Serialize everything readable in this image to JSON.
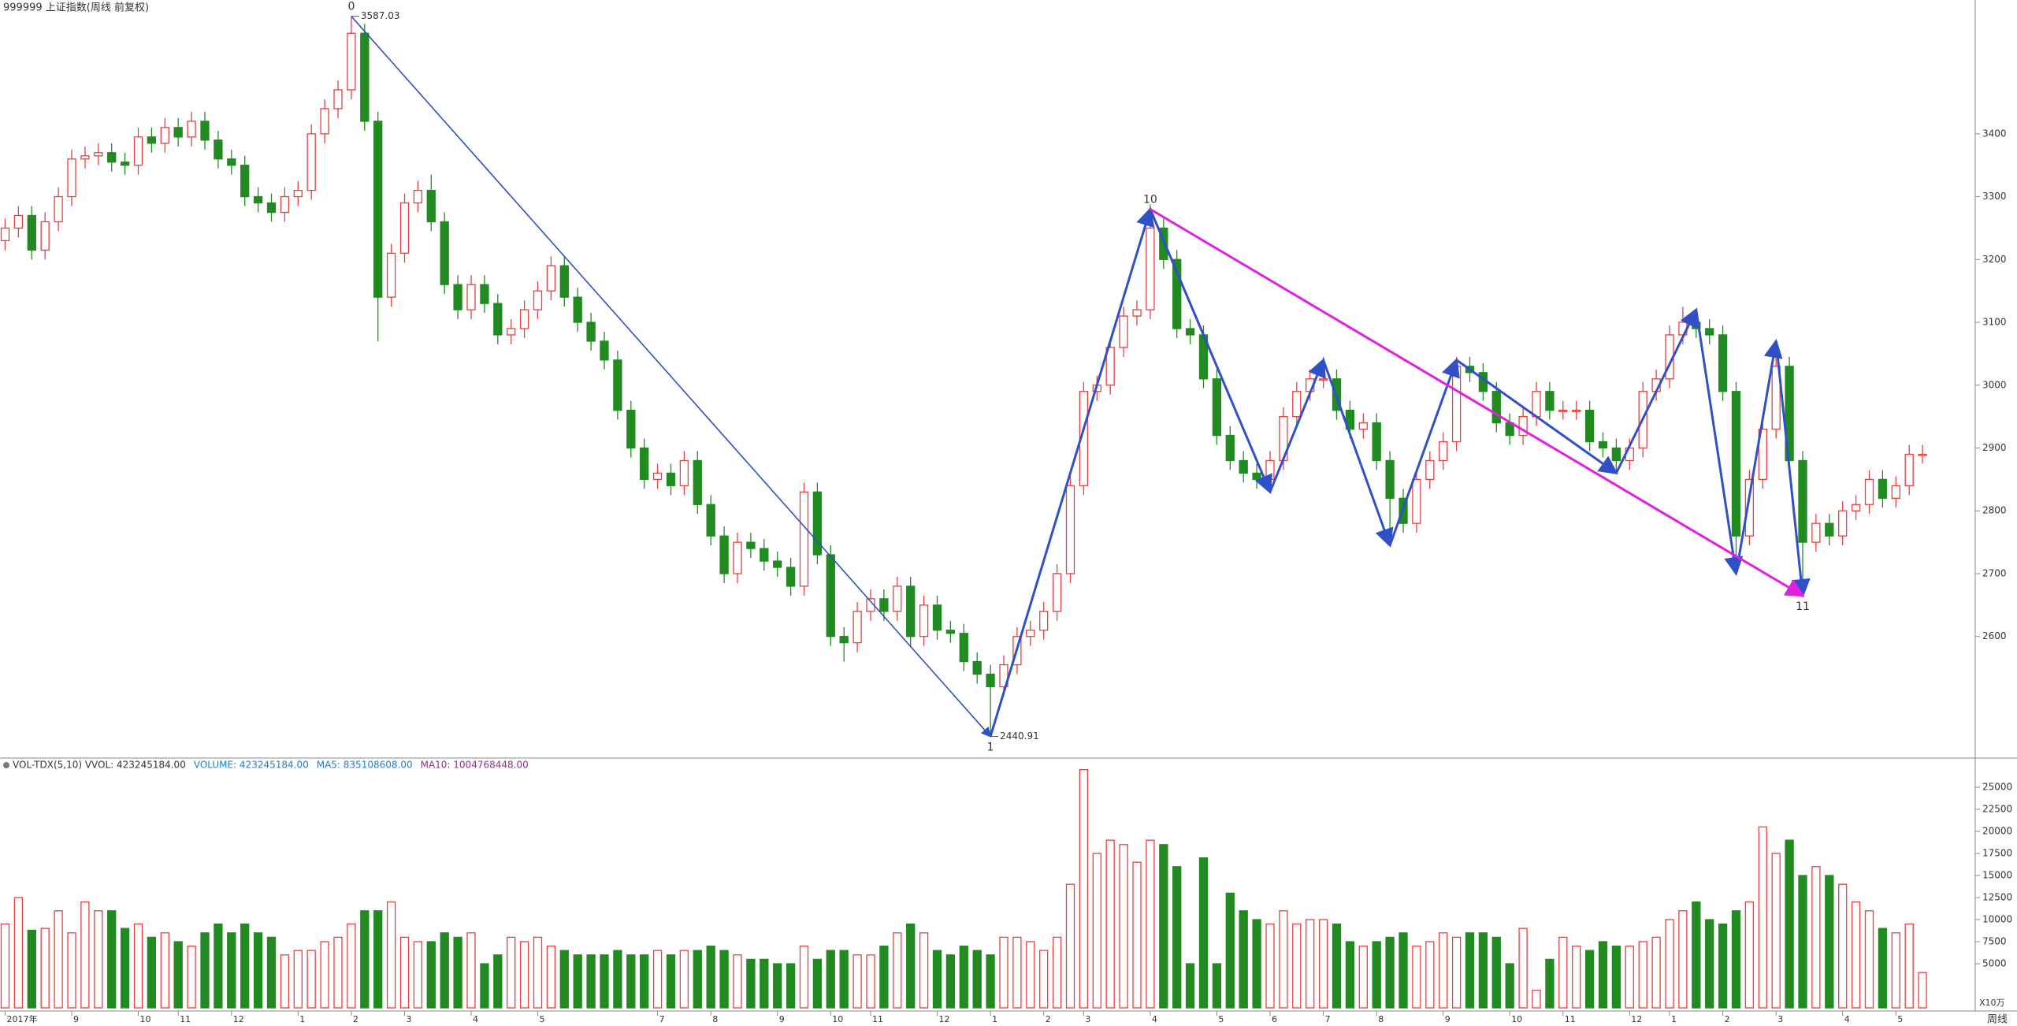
{
  "chart_data": [
    {
      "type": "candlestick",
      "title": "999999 上证指数(周线 前复权)",
      "period_label": "周线",
      "up_color": "#e8403f",
      "down_color": "#218a21",
      "open": [
        3230,
        3250,
        3270,
        3215,
        3260,
        3300,
        3360,
        3365,
        3370,
        3355,
        3350,
        3395,
        3385,
        3410,
        3395,
        3420,
        3390,
        3360,
        3350,
        3300,
        3290,
        3275,
        3300,
        3310,
        3400,
        3440,
        3470,
        3560,
        3420,
        3140,
        3210,
        3290,
        3310,
        3260,
        3160,
        3120,
        3160,
        3130,
        3080,
        3090,
        3120,
        3150,
        3190,
        3140,
        3100,
        3070,
        3040,
        2960,
        2900,
        2850,
        2860,
        2840,
        2880,
        2810,
        2760,
        2700,
        2750,
        2740,
        2720,
        2710,
        2680,
        2830,
        2730,
        2600,
        2590,
        2640,
        2660,
        2640,
        2680,
        2600,
        2650,
        2610,
        2605,
        2560,
        2540,
        2520,
        2555,
        2600,
        2610,
        2640,
        2700,
        2840,
        2990,
        3000,
        3060,
        3110,
        3120,
        3250,
        3200,
        3090,
        3080,
        3010,
        2920,
        2880,
        2860,
        2850,
        2880,
        2950,
        2990,
        3010,
        3010,
        2960,
        2930,
        2940,
        2880,
        2820,
        2780,
        2850,
        2880,
        2910,
        3030,
        3020,
        2990,
        2940,
        2920,
        2950,
        2990,
        2960,
        2960,
        2960,
        2910,
        2900,
        2880,
        2900,
        2990,
        3010,
        3080,
        3100,
        3090,
        3080,
        2990,
        2760,
        2850,
        2930,
        3030,
        2880,
        2750,
        2780,
        2760,
        2800,
        2810,
        2850,
        2820,
        2840,
        2890
      ],
      "high": [
        3265,
        3285,
        3285,
        3275,
        3315,
        3375,
        3380,
        3385,
        3385,
        3370,
        3410,
        3410,
        3425,
        3425,
        3435,
        3435,
        3405,
        3375,
        3365,
        3315,
        3305,
        3315,
        3325,
        3415,
        3455,
        3485,
        3587.03,
        3575,
        3435,
        3225,
        3305,
        3325,
        3335,
        3275,
        3175,
        3175,
        3175,
        3145,
        3105,
        3135,
        3165,
        3205,
        3205,
        3155,
        3115,
        3085,
        3055,
        2975,
        2915,
        2875,
        2875,
        2895,
        2895,
        2825,
        2775,
        2765,
        2765,
        2755,
        2735,
        2725,
        2845,
        2845,
        2745,
        2615,
        2655,
        2675,
        2675,
        2695,
        2695,
        2665,
        2665,
        2625,
        2620,
        2575,
        2555,
        2570,
        2615,
        2625,
        2655,
        2715,
        2855,
        3005,
        3015,
        3075,
        3125,
        3135,
        3288,
        3265,
        3215,
        3105,
        3095,
        3025,
        2935,
        2895,
        2875,
        2895,
        2965,
        3005,
        3025,
        3045,
        3025,
        2975,
        2955,
        2955,
        2895,
        2835,
        2865,
        2895,
        2925,
        3045,
        3045,
        3035,
        3005,
        2955,
        2965,
        3005,
        3005,
        2975,
        2975,
        2975,
        2925,
        2915,
        2915,
        3005,
        3025,
        3095,
        3125,
        3115,
        3105,
        3095,
        3005,
        2865,
        2945,
        3070,
        3045,
        2895,
        2795,
        2795,
        2815,
        2825,
        2865,
        2865,
        2855,
        2905,
        2905
      ],
      "low": [
        3215,
        3235,
        3200,
        3200,
        3245,
        3285,
        3345,
        3350,
        3340,
        3335,
        3335,
        3370,
        3370,
        3380,
        3380,
        3375,
        3345,
        3335,
        3285,
        3275,
        3260,
        3260,
        3285,
        3295,
        3385,
        3425,
        3455,
        3405,
        3070,
        3125,
        3195,
        3275,
        3245,
        3145,
        3105,
        3105,
        3115,
        3065,
        3065,
        3075,
        3105,
        3135,
        3125,
        3085,
        3055,
        3025,
        2945,
        2885,
        2835,
        2835,
        2825,
        2825,
        2795,
        2745,
        2685,
        2685,
        2725,
        2705,
        2695,
        2665,
        2665,
        2715,
        2585,
        2560,
        2575,
        2625,
        2625,
        2625,
        2585,
        2585,
        2595,
        2590,
        2545,
        2525,
        2440.91,
        2505,
        2540,
        2585,
        2595,
        2625,
        2685,
        2825,
        2975,
        2985,
        3045,
        3095,
        3105,
        3185,
        3075,
        3065,
        2995,
        2905,
        2865,
        2845,
        2835,
        2830,
        2865,
        2935,
        2975,
        2995,
        2945,
        2915,
        2915,
        2865,
        2745,
        2765,
        2765,
        2835,
        2865,
        2895,
        3005,
        2975,
        2925,
        2905,
        2905,
        2935,
        2945,
        2945,
        2945,
        2895,
        2885,
        2860,
        2865,
        2885,
        2975,
        2995,
        3065,
        3075,
        3065,
        2975,
        2700,
        2745,
        2835,
        2915,
        2865,
        2665,
        2735,
        2745,
        2745,
        2785,
        2795,
        2805,
        2805,
        2825,
        2875
      ],
      "close": [
        3250,
        3270,
        3215,
        3260,
        3300,
        3360,
        3365,
        3370,
        3355,
        3350,
        3395,
        3385,
        3410,
        3395,
        3420,
        3390,
        3360,
        3350,
        3300,
        3290,
        3275,
        3300,
        3310,
        3400,
        3440,
        3470,
        3560,
        3420,
        3140,
        3210,
        3290,
        3310,
        3260,
        3160,
        3120,
        3160,
        3130,
        3080,
        3090,
        3120,
        3150,
        3190,
        3140,
        3100,
        3070,
        3040,
        2960,
        2900,
        2850,
        2860,
        2840,
        2880,
        2810,
        2760,
        2700,
        2750,
        2740,
        2720,
        2710,
        2680,
        2830,
        2730,
        2600,
        2590,
        2640,
        2660,
        2640,
        2680,
        2600,
        2650,
        2610,
        2605,
        2560,
        2540,
        2520,
        2555,
        2600,
        2610,
        2640,
        2700,
        2840,
        2990,
        3000,
        3060,
        3110,
        3120,
        3250,
        3200,
        3090,
        3080,
        3010,
        2920,
        2880,
        2860,
        2850,
        2880,
        2950,
        2990,
        3010,
        3010,
        2960,
        2930,
        2940,
        2880,
        2820,
        2780,
        2850,
        2880,
        2910,
        3030,
        3020,
        2990,
        2940,
        2920,
        2950,
        2990,
        2960,
        2960,
        2960,
        2910,
        2900,
        2880,
        2900,
        2990,
        3010,
        3080,
        3100,
        3090,
        3080,
        2990,
        2760,
        2850,
        2930,
        3030,
        2880,
        2750,
        2780,
        2760,
        2800,
        2810,
        2850,
        2820,
        2840,
        2890,
        2890
      ],
      "ylim": [
        2409,
        3613
      ],
      "yticks": [
        2600,
        2700,
        2800,
        2900,
        3000,
        3100,
        3200,
        3300,
        3400
      ],
      "x_labels": [
        {
          "index": 0,
          "label": "2017年"
        },
        {
          "index": 5,
          "label": "9"
        },
        {
          "index": 10,
          "label": "10"
        },
        {
          "index": 13,
          "label": "11"
        },
        {
          "index": 17,
          "label": "12"
        },
        {
          "index": 22,
          "label": "1"
        },
        {
          "index": 26,
          "label": "2"
        },
        {
          "index": 30,
          "label": "3"
        },
        {
          "index": 35,
          "label": "4"
        },
        {
          "index": 40,
          "label": "5"
        },
        {
          "index": 49,
          "label": "7"
        },
        {
          "index": 53,
          "label": "8"
        },
        {
          "index": 58,
          "label": "9"
        },
        {
          "index": 62,
          "label": "10"
        },
        {
          "index": 65,
          "label": "11"
        },
        {
          "index": 70,
          "label": "12"
        },
        {
          "index": 74,
          "label": "1"
        },
        {
          "index": 78,
          "label": "2"
        },
        {
          "index": 81,
          "label": "3"
        },
        {
          "index": 86,
          "label": "4"
        },
        {
          "index": 91,
          "label": "5"
        },
        {
          "index": 95,
          "label": "6"
        },
        {
          "index": 99,
          "label": "7"
        },
        {
          "index": 103,
          "label": "8"
        },
        {
          "index": 108,
          "label": "9"
        },
        {
          "index": 113,
          "label": "10"
        },
        {
          "index": 117,
          "label": "11"
        },
        {
          "index": 122,
          "label": "12"
        },
        {
          "index": 125,
          "label": "1"
        },
        {
          "index": 129,
          "label": "2"
        },
        {
          "index": 133,
          "label": "3"
        },
        {
          "index": 138,
          "label": "4"
        },
        {
          "index": 142,
          "label": "5"
        }
      ],
      "wave_color": "#3050c8",
      "wave": [
        {
          "i": 26,
          "price": 3587.03,
          "label": "0"
        },
        {
          "i": 74,
          "price": 2440.91,
          "label": "1"
        },
        {
          "i": 86,
          "price": 3280,
          "label": "10"
        },
        {
          "i": 95,
          "price": 2830
        },
        {
          "i": 99,
          "price": 3040
        },
        {
          "i": 104,
          "price": 2745
        },
        {
          "i": 109,
          "price": 3040
        },
        {
          "i": 121,
          "price": 2860
        },
        {
          "i": 127,
          "price": 3120
        },
        {
          "i": 130,
          "price": 2700
        },
        {
          "i": 133,
          "price": 3070
        },
        {
          "i": 135,
          "price": 2665,
          "label": "11"
        }
      ],
      "trend_color": "#e020e0",
      "trend": [
        {
          "i": 86,
          "price": 3280
        },
        {
          "i": 135,
          "price": 2665
        }
      ],
      "price_labels": [
        {
          "i": 26,
          "path": "high"
        },
        {
          "i": 74,
          "path": "low"
        }
      ]
    },
    {
      "type": "bar",
      "legend": [
        {
          "text": "VOL-TDX(5,10) VVOL: 423245184.00",
          "color": "#333333"
        },
        {
          "text": "VOLUME: 423245184.00",
          "color": "#1c7fd0"
        },
        {
          "text": "MA5: 835108608.00",
          "color": "#1c7fd0"
        },
        {
          "text": "MA10: 1004768448.00",
          "color": "#9c2a8c"
        }
      ],
      "unit_label": "X10万",
      "values": [
        9500,
        12500,
        8800,
        9000,
        11000,
        8500,
        12000,
        11000,
        11000,
        9000,
        9500,
        8000,
        8500,
        7500,
        7000,
        8500,
        9500,
        8500,
        9500,
        8500,
        8000,
        6000,
        6500,
        6500,
        7500,
        8000,
        9500,
        11000,
        11000,
        12000,
        8000,
        7500,
        7500,
        8500,
        8000,
        8500,
        5000,
        6000,
        8000,
        7500,
        8000,
        7000,
        6500,
        6000,
        6000,
        6000,
        6500,
        6000,
        6000,
        6500,
        6000,
        6500,
        6500,
        7000,
        6500,
        6000,
        5500,
        5500,
        5000,
        5000,
        7000,
        5500,
        6500,
        6500,
        6000,
        6000,
        7000,
        8500,
        9500,
        8500,
        6500,
        6000,
        7000,
        6500,
        6000,
        8000,
        8000,
        7500,
        6500,
        8000,
        14000,
        27000,
        17500,
        19000,
        18500,
        16500,
        19000,
        18500,
        16000,
        5000,
        17000,
        5000,
        13000,
        11000,
        10000,
        9500,
        11000,
        9500,
        10000,
        10000,
        9500,
        7500,
        7000,
        7500,
        8000,
        8500,
        7000,
        7500,
        8500,
        8000,
        8500,
        8500,
        8000,
        5000,
        9000,
        2000,
        5500,
        8000,
        7000,
        6500,
        7500,
        7000,
        7000,
        7500,
        8000,
        10000,
        11000,
        12000,
        10000,
        9500,
        11000,
        12000,
        20500,
        17500,
        19000,
        15000,
        16000,
        15000,
        14000,
        12000,
        11000,
        9000,
        8500,
        9500,
        4000
      ],
      "ylim": [
        0,
        28125
      ],
      "yticks": [
        5000,
        7500,
        10000,
        12500,
        15000,
        17500,
        20000,
        22500,
        25000
      ]
    }
  ]
}
